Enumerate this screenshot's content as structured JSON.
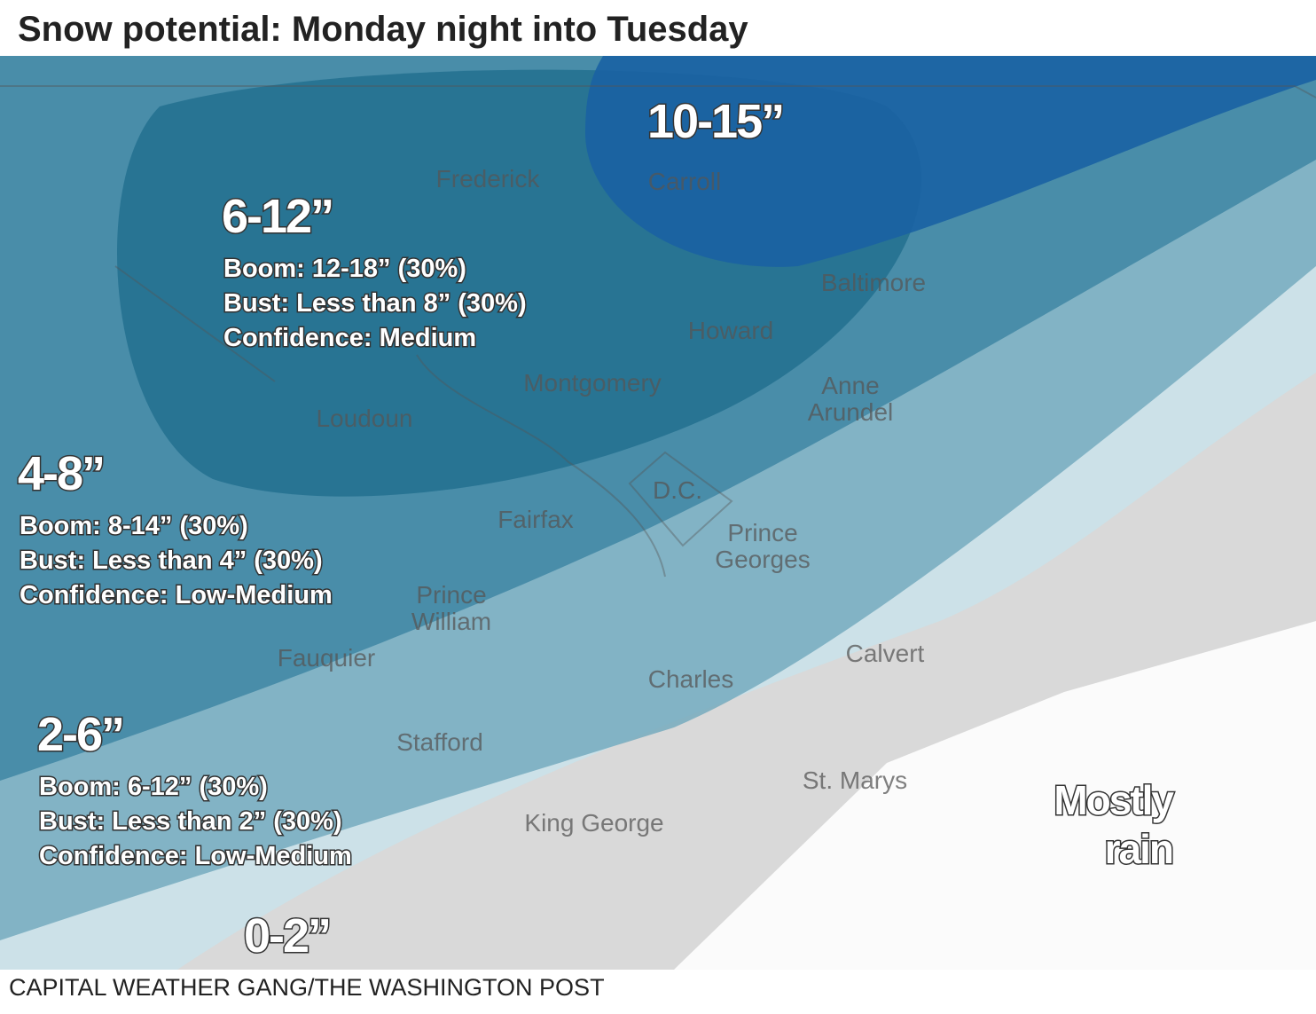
{
  "title": "Snow potential: Monday night into Tuesday",
  "zones": [
    {
      "amount": "10-15”"
    },
    {
      "amount": "6-12”",
      "lines": [
        "Boom: 12-18” (30%)",
        "Bust: Less than 8” (30%)",
        "Confidence: Medium"
      ]
    },
    {
      "amount": "4-8”",
      "lines": [
        "Boom: 8-14” (30%)",
        "Bust: Less than 4” (30%)",
        "Confidence: Low-Medium"
      ]
    },
    {
      "amount": "2-6”",
      "lines": [
        "Boom: 6-12” (30%)",
        "Bust: Less than 2” (30%)",
        "Confidence: Low-Medium"
      ]
    },
    {
      "amount": "0-2”"
    }
  ],
  "rain_label": [
    "Mostly",
    "rain"
  ],
  "counties": [
    [
      "Frederick"
    ],
    [
      "Carroll"
    ],
    [
      "Baltimore"
    ],
    [
      "Howard"
    ],
    [
      "Montgomery"
    ],
    [
      "Anne",
      "Arundel"
    ],
    [
      "Loudoun"
    ],
    [
      "D.C."
    ],
    [
      "Fairfax"
    ],
    [
      "Prince",
      "Georges"
    ],
    [
      "Prince",
      "William"
    ],
    [
      "Fauquier"
    ],
    [
      "Calvert"
    ],
    [
      "Charles"
    ],
    [
      "Stafford"
    ],
    [
      "St. Marys"
    ],
    [
      "King George"
    ]
  ],
  "credit": "CAPITAL WEATHER GANG/THE WASHINGTON POST"
}
